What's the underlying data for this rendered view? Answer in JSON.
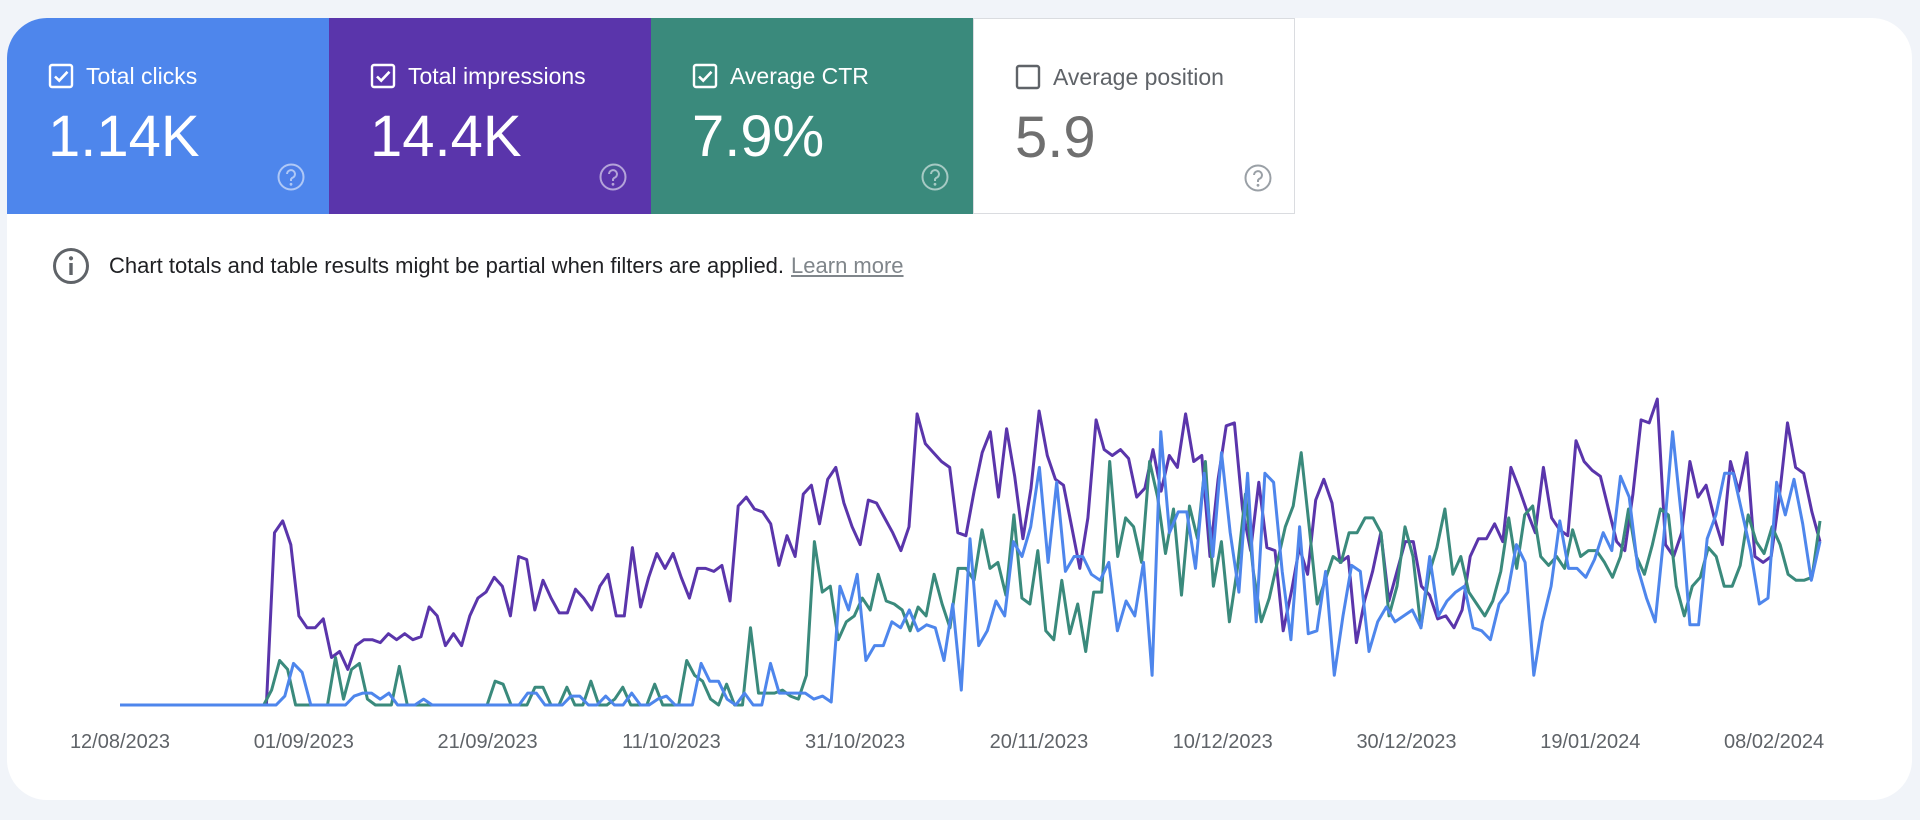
{
  "metrics": [
    {
      "label": "Total clicks",
      "value": "1.14K",
      "checked": true,
      "color": "#4e86ec"
    },
    {
      "label": "Total impressions",
      "value": "14.4K",
      "checked": true,
      "color": "#5a35ab"
    },
    {
      "label": "Average CTR",
      "value": "7.9%",
      "checked": true,
      "color": "#3a8a7c"
    },
    {
      "label": "Average position",
      "value": "5.9",
      "checked": false,
      "color": "#ffffff"
    }
  ],
  "notice": {
    "text": "Chart totals and table results might be partial when filters are applied.",
    "link": "Learn more"
  },
  "chart_data": {
    "type": "line",
    "x_start": "12/08/2023",
    "x_end": "13/02/2024",
    "x_ticks": [
      "12/08/2023",
      "01/09/2023",
      "21/09/2023",
      "11/10/2023",
      "31/10/2023",
      "20/11/2023",
      "10/12/2023",
      "30/12/2023",
      "19/01/2024",
      "08/02/2024"
    ],
    "y_axis_visible": false,
    "series": [
      {
        "name": "Total impressions",
        "color": "#5a35ab",
        "values": [
          0,
          0,
          0,
          0,
          0,
          0,
          0,
          0,
          0,
          0,
          0,
          0,
          0,
          0,
          0,
          0,
          0,
          0,
          0,
          0.58,
          0.62,
          0.54,
          0.3,
          0.26,
          0.26,
          0.29,
          0.16,
          0.18,
          0.12,
          0.2,
          0.22,
          0.22,
          0.21,
          0.24,
          0.22,
          0.24,
          0.22,
          0.23,
          0.33,
          0.3,
          0.2,
          0.24,
          0.2,
          0.3,
          0.36,
          0.38,
          0.43,
          0.4,
          0.3,
          0.5,
          0.49,
          0.32,
          0.42,
          0.36,
          0.31,
          0.31,
          0.39,
          0.36,
          0.32,
          0.4,
          0.44,
          0.3,
          0.3,
          0.53,
          0.33,
          0.43,
          0.51,
          0.46,
          0.51,
          0.43,
          0.36,
          0.46,
          0.46,
          0.45,
          0.47,
          0.35,
          0.67,
          0.7,
          0.66,
          0.65,
          0.61,
          0.47,
          0.57,
          0.5,
          0.71,
          0.74,
          0.61,
          0.76,
          0.8,
          0.68,
          0.6,
          0.54,
          0.69,
          0.68,
          0.63,
          0.58,
          0.52,
          0.6,
          0.98,
          0.88,
          0.85,
          0.82,
          0.8,
          0.58,
          0.57,
          0.72,
          0.85,
          0.92,
          0.7,
          0.93,
          0.77,
          0.56,
          0.73,
          0.99,
          0.84,
          0.76,
          0.74,
          0.6,
          0.46,
          0.63,
          0.96,
          0.86,
          0.84,
          0.86,
          0.83,
          0.7,
          0.73,
          0.86,
          0.72,
          0.84,
          0.8,
          0.98,
          0.82,
          0.84,
          0.5,
          0.76,
          0.94,
          0.95,
          0.66,
          0.52,
          0.75,
          0.53,
          0.52,
          0.25,
          0.38,
          0.53,
          0.44,
          0.69,
          0.76,
          0.68,
          0.48,
          0.5,
          0.21,
          0.35,
          0.45,
          0.58,
          0.35,
          0.45,
          0.55,
          0.55,
          0.4,
          0.37,
          0.29,
          0.3,
          0.26,
          0.32,
          0.5,
          0.56,
          0.56,
          0.61,
          0.55,
          0.8,
          0.73,
          0.65,
          0.58,
          0.8,
          0.63,
          0.59,
          0.57,
          0.89,
          0.82,
          0.79,
          0.77,
          0.66,
          0.55,
          0.52,
          0.71,
          0.96,
          0.95,
          1.03,
          0.54,
          0.5,
          0.58,
          0.82,
          0.7,
          0.74,
          0.63,
          0.54,
          0.82,
          0.72,
          0.85,
          0.5,
          0.48,
          0.5,
          0.7,
          0.95,
          0.8,
          0.78,
          0.65,
          0.55
        ]
      },
      {
        "name": "Average CTR",
        "color": "#3a8a7c",
        "values": [
          0,
          0,
          0,
          0,
          0,
          0,
          0,
          0,
          0,
          0,
          0,
          0,
          0,
          0,
          0,
          0,
          0,
          0,
          0,
          0.05,
          0.15,
          0.12,
          0,
          0,
          0,
          0,
          0,
          0.16,
          0.02,
          0.12,
          0.14,
          0.02,
          0,
          0,
          0,
          0.13,
          0,
          0,
          0,
          0,
          0,
          0,
          0,
          0,
          0,
          0,
          0,
          0.08,
          0.07,
          0,
          0,
          0,
          0.06,
          0.06,
          0,
          0,
          0.06,
          0,
          0,
          0.08,
          0,
          0,
          0.02,
          0.06,
          0,
          0,
          0,
          0.07,
          0,
          0,
          0,
          0.15,
          0.1,
          0.08,
          0.02,
          0,
          0.07,
          0,
          0,
          0.26,
          0.04,
          0.04,
          0.04,
          0.05,
          0.03,
          0.02,
          0.1,
          0.55,
          0.38,
          0.4,
          0.22,
          0.28,
          0.3,
          0.36,
          0.32,
          0.44,
          0.35,
          0.34,
          0.32,
          0.25,
          0.33,
          0.3,
          0.44,
          0.34,
          0.26,
          0.46,
          0.46,
          0.42,
          0.59,
          0.46,
          0.48,
          0.37,
          0.64,
          0.36,
          0.34,
          0.52,
          0.25,
          0.22,
          0.42,
          0.24,
          0.34,
          0.18,
          0.38,
          0.38,
          0.82,
          0.5,
          0.63,
          0.6,
          0.48,
          0.82,
          0.7,
          0.51,
          0.66,
          0.37,
          0.67,
          0.56,
          0.82,
          0.4,
          0.55,
          0.28,
          0.46,
          0.71,
          0.45,
          0.28,
          0.36,
          0.48,
          0.6,
          0.67,
          0.85,
          0.6,
          0.34,
          0.42,
          0.5,
          0.48,
          0.58,
          0.58,
          0.63,
          0.63,
          0.58,
          0.3,
          0.4,
          0.6,
          0.5,
          0.26,
          0.44,
          0.53,
          0.66,
          0.44,
          0.5,
          0.38,
          0.34,
          0.3,
          0.35,
          0.45,
          0.63,
          0.46,
          0.64,
          0.67,
          0.5,
          0.47,
          0.5,
          0.46,
          0.59,
          0.5,
          0.52,
          0.52,
          0.48,
          0.43,
          0.5,
          0.66,
          0.5,
          0.44,
          0.54,
          0.66,
          0.64,
          0.4,
          0.3,
          0.4,
          0.43,
          0.53,
          0.5,
          0.4,
          0.4,
          0.47,
          0.64,
          0.55,
          0.51,
          0.6,
          0.54,
          0.44,
          0.42,
          0.42,
          0.43,
          0.62
        ]
      },
      {
        "name": "Total clicks",
        "color": "#4e86ec",
        "values": [
          0,
          0,
          0,
          0,
          0,
          0,
          0,
          0,
          0,
          0,
          0,
          0,
          0,
          0,
          0,
          0,
          0,
          0,
          0,
          0.03,
          0.14,
          0.11,
          0,
          0,
          0,
          0,
          0,
          0.03,
          0.04,
          0.04,
          0.02,
          0.04,
          0,
          0,
          0,
          0.02,
          0,
          0,
          0,
          0,
          0,
          0,
          0,
          0,
          0,
          0,
          0,
          0.04,
          0.04,
          0,
          0,
          0,
          0.03,
          0.03,
          0,
          0,
          0.03,
          0,
          0,
          0.04,
          0,
          0,
          0.02,
          0.03,
          0,
          0,
          0,
          0.14,
          0.08,
          0.08,
          0.02,
          0,
          0.04,
          0,
          0,
          0.14,
          0.04,
          0.04,
          0.04,
          0.04,
          0.02,
          0.03,
          0.01,
          0.4,
          0.32,
          0.44,
          0.15,
          0.2,
          0.2,
          0.28,
          0.26,
          0.32,
          0.25,
          0.27,
          0.26,
          0.15,
          0.34,
          0.05,
          0.56,
          0.2,
          0.25,
          0.35,
          0.3,
          0.55,
          0.5,
          0.6,
          0.8,
          0.48,
          0.75,
          0.45,
          0.5,
          0.5,
          0.44,
          0.42,
          0.48,
          0.25,
          0.35,
          0.3,
          0.48,
          0.1,
          0.92,
          0.58,
          0.65,
          0.65,
          0.46,
          0.78,
          0.5,
          0.85,
          0.58,
          0.38,
          0.78,
          0.28,
          0.78,
          0.75,
          0.45,
          0.22,
          0.6,
          0.24,
          0.25,
          0.45,
          0.1,
          0.3,
          0.47,
          0.45,
          0.18,
          0.28,
          0.33,
          0.28,
          0.3,
          0.32,
          0.26,
          0.5,
          0.3,
          0.35,
          0.38,
          0.4,
          0.26,
          0.25,
          0.22,
          0.34,
          0.38,
          0.54,
          0.48,
          0.1,
          0.28,
          0.4,
          0.62,
          0.46,
          0.46,
          0.43,
          0.49,
          0.58,
          0.52,
          0.77,
          0.7,
          0.46,
          0.36,
          0.28,
          0.57,
          0.92,
          0.64,
          0.27,
          0.27,
          0.56,
          0.64,
          0.78,
          0.78,
          0.65,
          0.52,
          0.34,
          0.36,
          0.75,
          0.64,
          0.76,
          0.61,
          0.42,
          0.55
        ]
      }
    ]
  }
}
